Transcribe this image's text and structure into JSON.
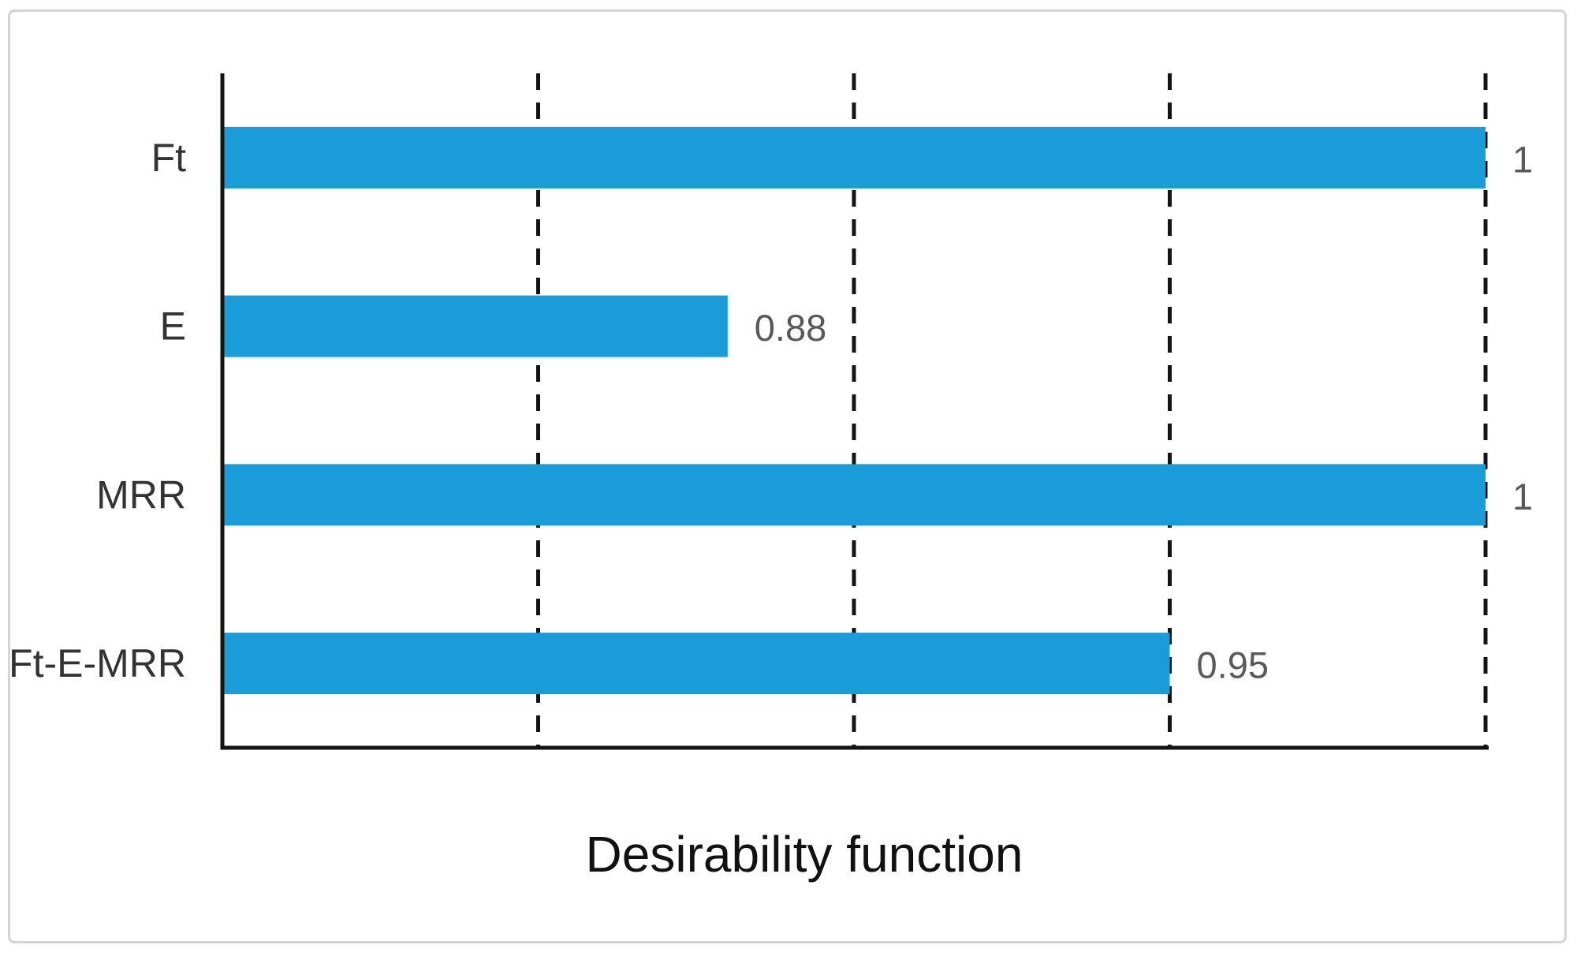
{
  "figure": {
    "background": "#ffffff",
    "border_color": "#d5d5d5"
  },
  "chart_data": {
    "type": "bar",
    "orientation": "horizontal",
    "title": "Desirability function",
    "categories": [
      "Ft",
      "E",
      "MRR",
      "Ft-E-MRR"
    ],
    "values": [
      1,
      0.88,
      1,
      0.95
    ],
    "value_labels": [
      "1",
      "0.88",
      "1",
      "0.95"
    ],
    "xlabel": "",
    "ylabel": "",
    "xlim": [
      0.8,
      1.0
    ],
    "gridlines_x": [
      0.85,
      0.9,
      0.95,
      1.0
    ],
    "grid_style": "dashed",
    "legend_position": "none",
    "bar_color": "#1a9cd8",
    "axis_color": "#141414",
    "gridline_color": "#141414",
    "value_label_color": "#595959",
    "category_label_color": "#333333",
    "title_color": "#111111"
  }
}
